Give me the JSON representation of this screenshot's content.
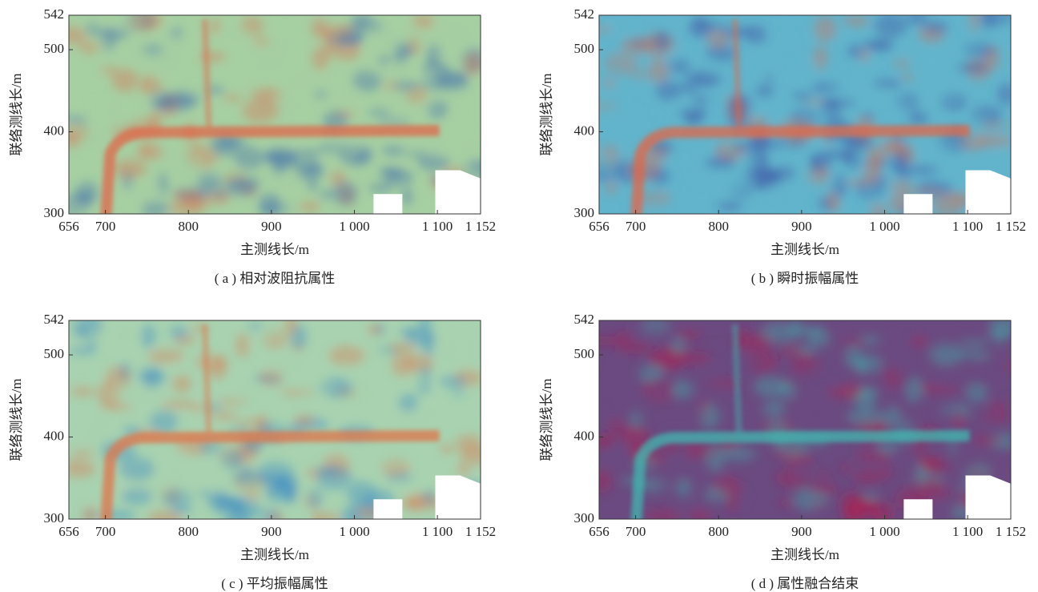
{
  "chart_data": [
    {
      "type": "heatmap",
      "caption": "( a ) 相对波阻抗属性",
      "xlabel": "主测线长/m",
      "ylabel": "联络测线长/m",
      "xlim": [
        656,
        1152
      ],
      "ylim": [
        300,
        542
      ],
      "xticks": [
        656,
        700,
        800,
        900,
        {
          "value": 1000,
          "label": "1 000"
        },
        {
          "value": 1100,
          "label": "1 100"
        },
        {
          "value": 1152,
          "label": "1 152"
        }
      ],
      "yticks": [
        300,
        400,
        500,
        542
      ],
      "colors": [
        "#3563b0",
        "#a6cfa2",
        "#e0684a"
      ]
    },
    {
      "type": "heatmap",
      "caption": "( b ) 瞬时振幅属性",
      "xlabel": "主测线长/m",
      "ylabel": "联络测线长/m",
      "xlim": [
        656,
        1152
      ],
      "ylim": [
        300,
        542
      ],
      "xticks": [
        656,
        700,
        800,
        900,
        {
          "value": 1000,
          "label": "1 000"
        },
        {
          "value": 1100,
          "label": "1 100"
        },
        {
          "value": 1152,
          "label": "1 152"
        }
      ],
      "yticks": [
        300,
        400,
        500,
        542
      ],
      "colors": [
        "#3a48a0",
        "#62b4cc",
        "#e0684a"
      ]
    },
    {
      "type": "heatmap",
      "caption": "( c ) 平均振幅属性",
      "xlabel": "主测线长/m",
      "ylabel": "联络测线长/m",
      "xlim": [
        656,
        1152
      ],
      "ylim": [
        300,
        542
      ],
      "xticks": [
        656,
        700,
        800,
        900,
        {
          "value": 1000,
          "label": "1 000"
        },
        {
          "value": 1100,
          "label": "1 100"
        },
        {
          "value": 1152,
          "label": "1 152"
        }
      ],
      "yticks": [
        300,
        400,
        500,
        542
      ],
      "colors": [
        "#2f80c8",
        "#a8d2b0",
        "#e0744a"
      ]
    },
    {
      "type": "heatmap",
      "caption": "( d ) 属性融合结束",
      "xlabel": "主测线长/m",
      "ylabel": "联络测线长/m",
      "xlim": [
        656,
        1152
      ],
      "ylim": [
        300,
        542
      ],
      "xticks": [
        656,
        700,
        800,
        900,
        {
          "value": 1000,
          "label": "1 000"
        },
        {
          "value": 1100,
          "label": "1 100"
        },
        {
          "value": 1152,
          "label": "1 152"
        }
      ],
      "yticks": [
        300,
        400,
        500,
        542
      ],
      "colors": [
        "#b02050",
        "#6a4a80",
        "#40b8b0"
      ]
    }
  ]
}
